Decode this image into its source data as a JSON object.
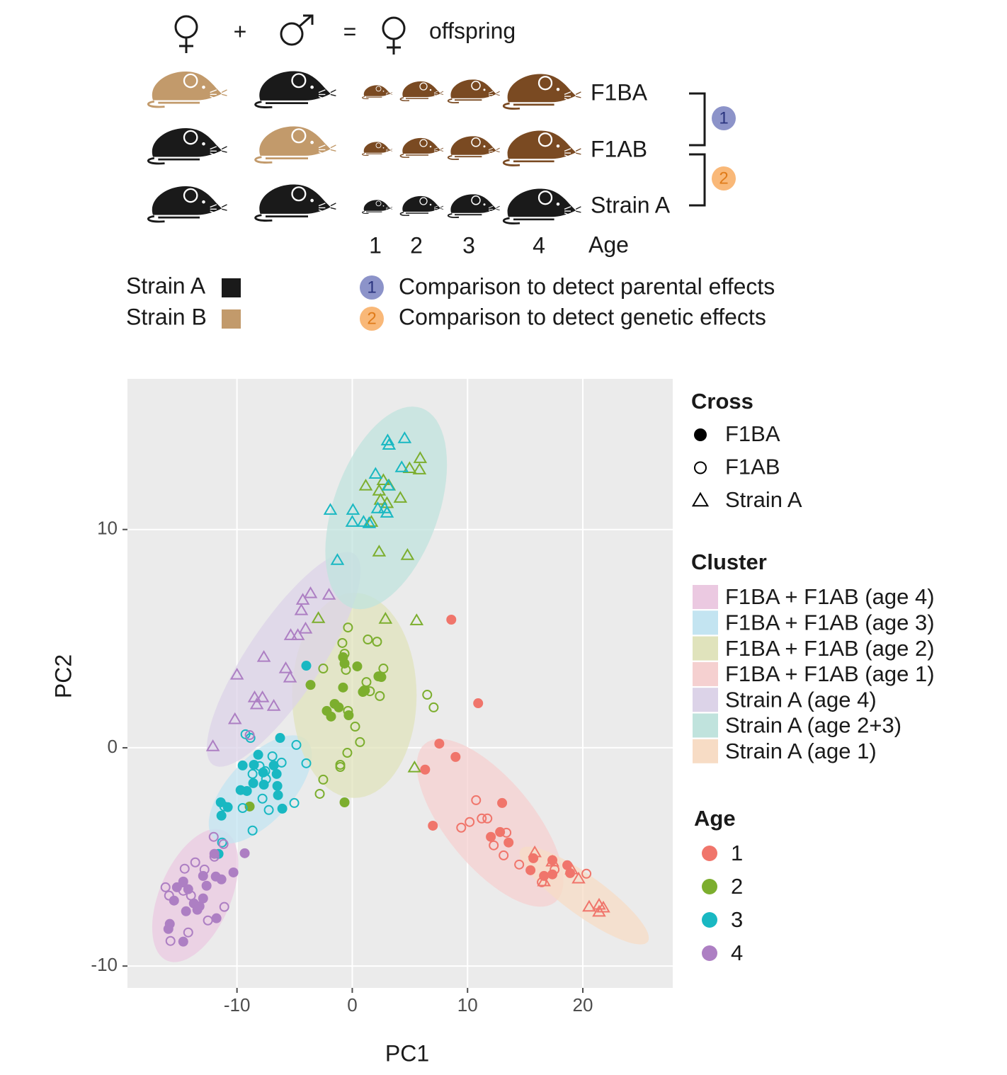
{
  "diagram": {
    "plus": "+",
    "equals": "=",
    "offspring": "offspring",
    "rows": [
      "F1BA",
      "F1AB",
      "Strain A"
    ],
    "ages": [
      "1",
      "2",
      "3",
      "4"
    ],
    "age_label": "Age",
    "strains": [
      {
        "label": "Strain A",
        "color": "#1a1a1a"
      },
      {
        "label": "Strain B",
        "color": "#c29a6b"
      }
    ],
    "comparisons": [
      {
        "number": "1",
        "label": "Comparison to detect parental effects",
        "color": "#8c93c9"
      },
      {
        "number": "2",
        "label": "Comparison to detect genetic effects",
        "color": "#f9b878"
      }
    ]
  },
  "chart_data": {
    "type": "scatter",
    "x_label": "PC1",
    "y_label": "PC2",
    "xlim": [
      -19.5,
      27.8
    ],
    "ylim": [
      -11,
      16.9
    ],
    "xticks": [
      -10,
      0,
      10,
      20
    ],
    "yticks": [
      -10,
      0,
      10
    ],
    "grid": true,
    "legend": "right",
    "legends": {
      "cross": {
        "title": "Cross",
        "items": [
          {
            "label": "F1BA",
            "shape": "circle-filled"
          },
          {
            "label": "F1AB",
            "shape": "circle-open"
          },
          {
            "label": "Strain A",
            "shape": "triangle-open"
          }
        ]
      },
      "cluster": {
        "title": "Cluster",
        "items": [
          {
            "label": "F1BA + F1AB (age 4)",
            "color": "#ebc9e1",
            "center": [
              -13.62,
              -6.77
            ],
            "axis_a": [
              2.45,
              2.98
            ],
            "axis_b": [
              2.82,
              -0.65
            ]
          },
          {
            "label": "F1BA + F1AB (age 3)",
            "color": "#c3e4f1",
            "center": [
              -7.98,
              -1.91
            ],
            "axis_a": [
              3.99,
              2.27
            ],
            "axis_b": [
              2.02,
              -1.0
            ]
          },
          {
            "label": "F1BA + F1AB (age 2)",
            "color": "#e0e3bc",
            "center": [
              0.18,
              2.4
            ],
            "axis_a": [
              0,
              4.7
            ],
            "axis_b": [
              5.4,
              0
            ]
          },
          {
            "label": "F1BA + F1AB (age 1)",
            "color": "#f5d0d0",
            "center": [
              11.96,
              -3.44
            ],
            "axis_a": [
              -5.64,
              3.63
            ],
            "axis_b": [
              2.94,
              1.26
            ]
          },
          {
            "label": "Strain A (age 4)",
            "color": "#dcd3e8",
            "center": [
              -5.95,
              4.05
            ],
            "axis_a": [
              6.13,
              4.83
            ],
            "axis_b": [
              2.64,
              -0.94
            ]
          },
          {
            "label": "Strain A (age 2+3)",
            "color": "#c0e3dd",
            "center": [
              2.94,
              10.99
            ],
            "axis_a": [
              3.07,
              4.57
            ],
            "axis_b": [
              4.29,
              -0.81
            ]
          },
          {
            "label": "Strain A (age 1)",
            "color": "#f7dcc5",
            "center": [
              20.12,
              -6.77
            ],
            "axis_a": [
              5.52,
              -2.11
            ],
            "axis_b": [
              -0.98,
              -0.75
            ]
          }
        ]
      },
      "age": {
        "title": "Age",
        "items": [
          {
            "label": "1",
            "color": "#f0756b"
          },
          {
            "label": "2",
            "color": "#7cae2e"
          },
          {
            "label": "3",
            "color": "#19b8c2"
          },
          {
            "label": "4",
            "color": "#ad7fc3"
          }
        ]
      }
    },
    "series": [
      {
        "cross": 2,
        "age": 1,
        "x": [
          1.17,
          2.33,
          2.7,
          3.19,
          2.45,
          3.01,
          4.17,
          1.66,
          2.33,
          4.79,
          2.88,
          5.58,
          -2.94,
          5.89,
          5.83,
          4.97,
          5.4
        ],
        "y": [
          12.0,
          11.77,
          12.25,
          12.0,
          11.35,
          11.2,
          11.44,
          10.34,
          8.98,
          8.82,
          5.9,
          5.83,
          5.93,
          13.26,
          12.74,
          12.8,
          -0.91
        ]
      },
      {
        "cross": 2,
        "age": 2,
        "x": [
          3.07,
          3.19,
          4.54,
          2.02,
          3.13,
          2.82,
          3.01,
          0.06,
          -1.9,
          0,
          0.98,
          1.47,
          -1.29,
          4.29,
          2.21
        ],
        "y": [
          14.07,
          13.87,
          14.17,
          12.54,
          12.0,
          10.96,
          10.76,
          10.89,
          10.89,
          10.34,
          10.34,
          10.28,
          8.59,
          12.84,
          10.96
        ]
      },
      {
        "cross": 2,
        "age": 3,
        "x": [
          -12.09,
          -10.18,
          -8.47,
          -6.81,
          -7.67,
          -10.0,
          -7.79,
          -5.4,
          -5.77,
          -5.34,
          -4.72,
          -4.05,
          -4.42,
          -3.62,
          -2.02,
          -4.29,
          -8.28
        ],
        "y": [
          0.06,
          1.3,
          2.3,
          1.91,
          4.15,
          3.34,
          2.3,
          3.21,
          3.63,
          5.15,
          5.15,
          5.45,
          6.29,
          7.07,
          7.0,
          6.77,
          1.98
        ]
      },
      {
        "cross": 2,
        "age": 0,
        "x": [
          15.83,
          17.36,
          19.02,
          19.63,
          20.55,
          21.41,
          21.78,
          21.41,
          16.63
        ],
        "y": [
          -4.8,
          -5.22,
          -5.58,
          -6.0,
          -7.29,
          -7.2,
          -7.33,
          -7.52,
          -6.13
        ]
      },
      {
        "cross": 0,
        "age": 0,
        "x": [
          8.59,
          10.92,
          7.55,
          8.96,
          6.32,
          6.99,
          13.0,
          12.82,
          12.02,
          13.56,
          15.46,
          15.71,
          16.63,
          17.36,
          17.36,
          18.65,
          18.9
        ],
        "y": [
          5.87,
          2.04,
          0.19,
          -0.42,
          -1.0,
          -3.57,
          -2.53,
          -3.86,
          -4.08,
          -4.34,
          -5.61,
          -5.06,
          -5.87,
          -5.8,
          -5.15,
          -5.38,
          -5.74
        ]
      },
      {
        "cross": 1,
        "age": 0,
        "x": [
          10.74,
          11.72,
          11.23,
          10.18,
          9.45,
          13.37,
          12.27,
          13.13,
          14.48,
          16.44,
          17.55,
          20.31
        ],
        "y": [
          -2.4,
          -3.24,
          -3.24,
          -3.4,
          -3.66,
          -3.89,
          -4.47,
          -4.93,
          -5.35,
          -6.16,
          -5.58,
          -5.77
        ]
      },
      {
        "cross": 0,
        "age": 1,
        "x": [
          -0.8,
          -0.67,
          0.43,
          2.27,
          2.52,
          -3.62,
          -0.8,
          1.1,
          0.92,
          -1.53,
          -1.17,
          -2.21,
          -1.84,
          -0.31,
          -0.67,
          -8.9
        ],
        "y": [
          4.15,
          3.86,
          3.73,
          3.27,
          3.24,
          2.88,
          2.76,
          2.63,
          2.56,
          2.01,
          1.85,
          1.69,
          1.43,
          1.49,
          -2.5,
          -2.69
        ]
      },
      {
        "cross": 1,
        "age": 1,
        "x": [
          -0.37,
          -0.86,
          1.35,
          2.15,
          -0.67,
          -2.52,
          -0.55,
          2.7,
          2.39,
          1.23,
          1.04,
          2.39,
          1.53,
          6.5,
          7.06,
          -0.37,
          0.25,
          0.67,
          -0.43,
          -1.04,
          -1.04,
          -2.52,
          -2.82
        ],
        "y": [
          5.51,
          4.8,
          4.96,
          4.86,
          4.31,
          3.63,
          3.57,
          3.63,
          3.27,
          3.01,
          2.63,
          2.37,
          2.59,
          2.43,
          1.85,
          1.69,
          0.97,
          0.26,
          -0.23,
          -0.78,
          -0.88,
          -1.46,
          -2.11
        ]
      },
      {
        "cross": 0,
        "age": 2,
        "x": [
          -3.99,
          -6.26,
          -8.16,
          -9.51,
          -8.53,
          -6.81,
          -7.73,
          -6.56,
          -8.59,
          -7.67,
          -6.5,
          -9.69,
          -9.14,
          -11.41,
          -10.8,
          -6.44,
          -6.07,
          -11.35,
          -11.6
        ],
        "y": [
          3.76,
          0.45,
          -0.32,
          -0.81,
          -0.78,
          -0.81,
          -1.13,
          -1.2,
          -1.62,
          -1.69,
          -1.75,
          -1.94,
          -1.98,
          -2.5,
          -2.72,
          -2.17,
          -2.79,
          -3.11,
          -4.86
        ]
      },
      {
        "cross": 1,
        "age": 2,
        "x": [
          -9.26,
          -8.83,
          -4.85,
          -3.99,
          -6.93,
          -8.65,
          -6.13,
          -8.04,
          -7.55,
          -7.79,
          -7.24,
          -9.51,
          -11.1,
          -5.03,
          -8.65,
          -11.29,
          -7.48
        ],
        "y": [
          0.62,
          0.45,
          0.13,
          -0.71,
          -0.39,
          -1.2,
          -0.68,
          -0.84,
          -1.07,
          -2.33,
          -2.85,
          -2.76,
          -2.69,
          -2.53,
          -3.79,
          -4.34,
          -1.43
        ]
      },
      {
        "cross": 0,
        "age": 3,
        "x": [
          -9.33,
          -11.96,
          -10.31,
          -11.84,
          -12.94,
          -14.66,
          -15.21,
          -14.23,
          -12.64,
          -15.46,
          -12.94,
          -13.74,
          -13.25,
          -14.42,
          -13.44,
          -11.78,
          -15.83,
          -15.95,
          -14.66,
          -11.35
        ],
        "y": [
          -4.83,
          -4.86,
          -5.71,
          -5.9,
          -5.87,
          -6.13,
          -6.39,
          -6.48,
          -6.32,
          -7.0,
          -6.9,
          -7.13,
          -7.26,
          -7.49,
          -7.42,
          -7.81,
          -8.07,
          -8.3,
          -8.88,
          -6.03
        ]
      },
      {
        "cross": 1,
        "age": 3,
        "x": [
          -12.02,
          -11.17,
          -13.62,
          -14.54,
          -12.82,
          -16.2,
          -14.66,
          -13.99,
          -15.89,
          -11.1,
          -12.52,
          -14.23,
          -15.77,
          -8.9,
          -11.96
        ],
        "y": [
          -4.08,
          -4.41,
          -5.25,
          -5.54,
          -5.58,
          -6.39,
          -6.55,
          -6.77,
          -6.77,
          -7.29,
          -7.91,
          -8.46,
          -8.85,
          0.58,
          -4.99
        ]
      }
    ]
  }
}
